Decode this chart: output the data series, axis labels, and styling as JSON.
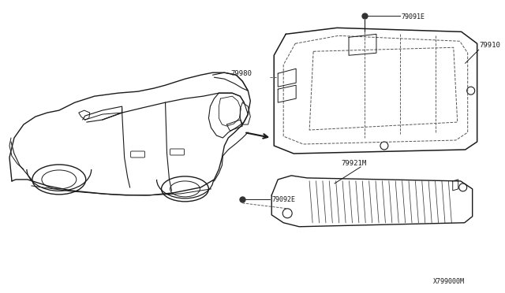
{
  "bg_color": "#ffffff",
  "line_color": "#1a1a1a",
  "dash_color": "#555555",
  "fig_width": 6.4,
  "fig_height": 3.72,
  "dpi": 100,
  "diagram_id": "X799000M",
  "label_79091E": "79091E",
  "label_79910": "79910",
  "label_79980": "79980",
  "label_79092E": "79092E",
  "label_79921M": "79921M"
}
